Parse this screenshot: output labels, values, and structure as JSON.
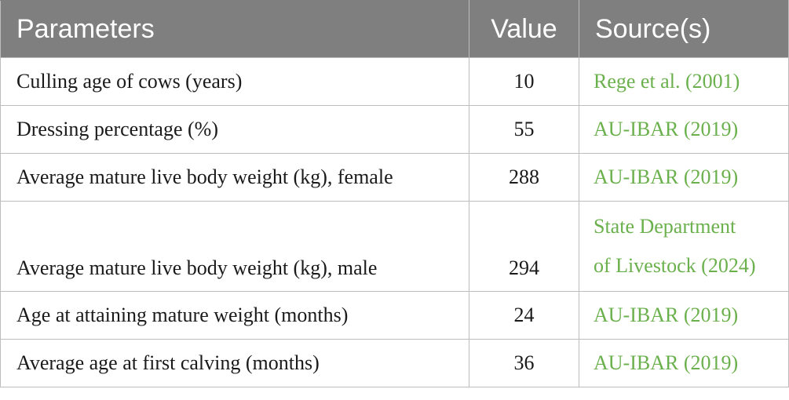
{
  "headers": {
    "parameters": "Parameters",
    "value": "Value",
    "sources": "Source(s)"
  },
  "rows": [
    {
      "parameter": "Culling age of cows (years)",
      "value": "10",
      "source": "Rege et al. (2001)"
    },
    {
      "parameter": "Dressing percentage (%)",
      "value": "55",
      "source": "AU-IBAR (2019)"
    },
    {
      "parameter": "Average mature live body weight (kg), female",
      "value": "288",
      "source": "AU-IBAR (2019)"
    },
    {
      "parameter": "Average mature live body weight (kg), male",
      "value": "294",
      "source_line1": "State Department",
      "source_line2": "of Livestock (2024)"
    },
    {
      "parameter": "Age at attaining mature weight (months)",
      "value": "24",
      "source": "AU-IBAR (2019)"
    },
    {
      "parameter": "Average age at first calving (months)",
      "value": "36",
      "source": "AU-IBAR (2019)"
    }
  ],
  "colors": {
    "header_bg": "#7f7f7f",
    "header_text": "#ffffff",
    "source_link": "#6ab04c",
    "border": "#bdbdbd"
  }
}
